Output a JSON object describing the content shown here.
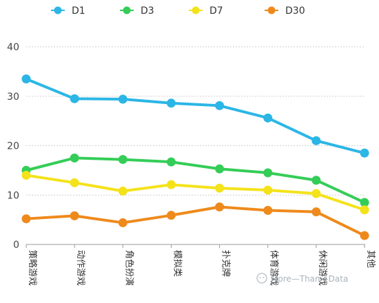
{
  "chart_data": {
    "type": "line",
    "categories": [
      "策略游戏",
      "动作游戏",
      "角色扮演",
      "模拟类",
      "扑克牌",
      "体育游戏",
      "休闲游戏",
      "其他"
    ],
    "series": [
      {
        "name": "D1",
        "color": "#2bb6e6",
        "values": [
          33.5,
          29.5,
          29.4,
          28.6,
          28.1,
          25.6,
          21.0,
          18.5
        ]
      },
      {
        "name": "D3",
        "color": "#34cd57",
        "values": [
          15.0,
          17.5,
          17.2,
          16.7,
          15.3,
          14.5,
          13.0,
          8.5
        ]
      },
      {
        "name": "D7",
        "color": "#f4e21b",
        "values": [
          14.0,
          12.5,
          10.8,
          12.1,
          11.4,
          11.0,
          10.3,
          7.0
        ]
      },
      {
        "name": "D30",
        "color": "#ee8a1c",
        "values": [
          5.2,
          5.8,
          4.4,
          5.9,
          7.6,
          6.9,
          6.6,
          1.8
        ]
      }
    ],
    "yticks": [
      0,
      10,
      20,
      30,
      40
    ],
    "ylim": [
      0,
      40
    ],
    "grid": true,
    "legend": "top"
  },
  "watermark": {
    "text": "More—Than—Data",
    "icon": "wechat-icon"
  }
}
